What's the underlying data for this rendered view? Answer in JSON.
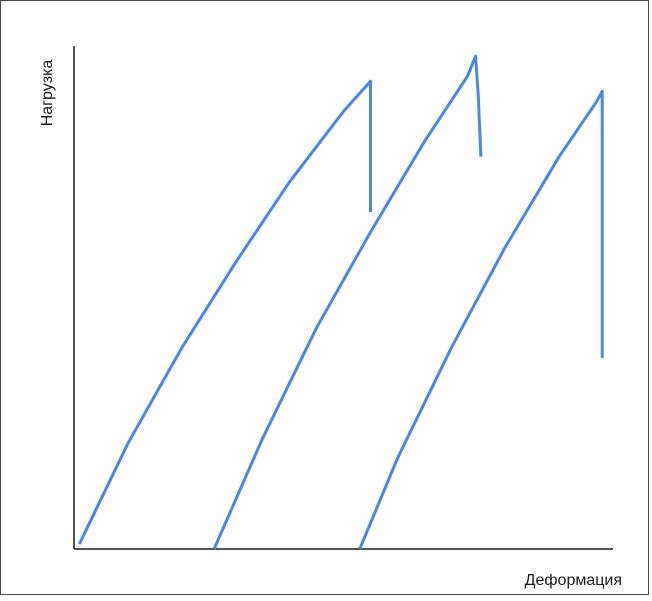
{
  "chart_data": {
    "type": "line",
    "title": "",
    "xlabel": "Деформация",
    "ylabel": "Нагрузка",
    "xlim": [
      0,
      100
    ],
    "ylim": [
      0,
      100
    ],
    "grid": false,
    "legend": "none",
    "series_color": "#4a86e8",
    "axis_color": "#1a1a1a",
    "series": [
      {
        "x": [
          1,
          10,
          20,
          30,
          40,
          50,
          55,
          55,
          55
        ],
        "y": [
          1,
          21,
          40,
          57,
          73,
          87,
          93,
          88,
          67
        ]
      },
      {
        "x": [
          26,
          35,
          45,
          55,
          65,
          73,
          74.5,
          75,
          75.5
        ],
        "y": [
          0,
          22,
          44,
          63,
          81,
          94,
          98,
          90,
          78
        ]
      },
      {
        "x": [
          53,
          60,
          70,
          80,
          90,
          97,
          98,
          98,
          98
        ],
        "y": [
          0,
          18,
          40,
          60,
          78,
          89,
          91,
          85,
          38
        ]
      }
    ]
  }
}
